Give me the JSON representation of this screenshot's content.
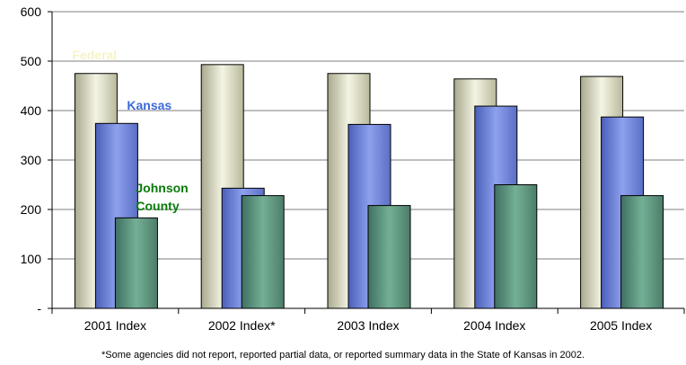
{
  "chart_data": {
    "type": "bar",
    "title": "",
    "xlabel": "",
    "ylabel": "",
    "ylim": [
      0,
      600
    ],
    "yticks": [
      "-",
      "100",
      "200",
      "300",
      "400",
      "500",
      "600"
    ],
    "grid": true,
    "categories": [
      "2001 Index",
      "2002 Index*",
      "2003 Index",
      "2004 Index",
      "2005 Index"
    ],
    "series": [
      {
        "name": "Federal",
        "values": [
          475,
          493,
          475,
          464,
          469
        ],
        "color": "#e8e8cc"
      },
      {
        "name": "Kansas",
        "values": [
          374,
          243,
          372,
          409,
          387
        ],
        "color": "#7b8fe0"
      },
      {
        "name": "Johnson County",
        "values": [
          183,
          228,
          208,
          250,
          228
        ],
        "color": "#5e9c82"
      }
    ],
    "series_label_lines": {
      "Federal": [
        "Federal"
      ],
      "Kansas": [
        "Kansas"
      ],
      "Johnson County": [
        "Johnson",
        "County"
      ]
    },
    "series_label_colors": {
      "Federal": "#f6f3c8",
      "Kansas": "#3c6ad8",
      "Johnson County": "#0a7a0a"
    },
    "footnote": "*Some agencies did not report, reported partial data, or reported summary data in the State of Kansas in 2002."
  }
}
